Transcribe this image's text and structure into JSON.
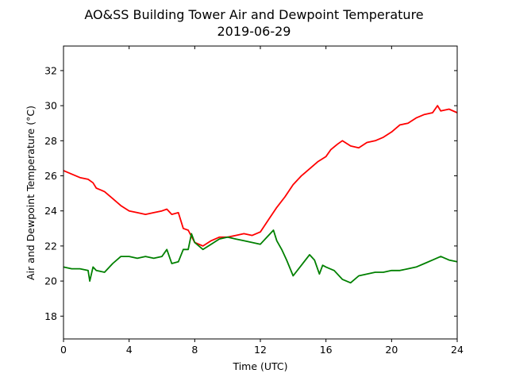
{
  "chart_data": {
    "type": "line",
    "title": "AO&SS Building Tower Air and Dewpoint Temperature",
    "subtitle": "2019-06-29",
    "xlabel": "Time (UTC)",
    "ylabel": "Air and Dewpoint Temperature (°C)",
    "xlim": [
      0,
      24
    ],
    "ylim": [
      16.7,
      33.4
    ],
    "xticks": [
      0,
      4,
      8,
      12,
      16,
      20,
      24
    ],
    "yticks": [
      18,
      20,
      22,
      24,
      26,
      28,
      30,
      32
    ],
    "grid": false,
    "legend": "none",
    "series": [
      {
        "color": "#ff0000",
        "x": [
          0,
          0.5,
          1,
          1.5,
          1.8,
          2.0,
          2.5,
          3.0,
          3.5,
          4.0,
          4.5,
          5.0,
          5.5,
          6.0,
          6.3,
          6.6,
          7.0,
          7.3,
          7.6,
          8.0,
          8.5,
          9.0,
          9.5,
          10.0,
          10.5,
          11.0,
          11.5,
          12.0,
          12.5,
          13.0,
          13.5,
          14.0,
          14.5,
          15.0,
          15.5,
          16.0,
          16.3,
          16.7,
          17.0,
          17.5,
          18.0,
          18.5,
          19.0,
          19.5,
          20.0,
          20.5,
          21.0,
          21.5,
          22.0,
          22.5,
          22.8,
          23.0,
          23.5,
          24.0
        ],
        "y": [
          26.3,
          26.1,
          25.9,
          25.8,
          25.6,
          25.3,
          25.1,
          24.7,
          24.3,
          24.0,
          23.9,
          23.8,
          23.9,
          24.0,
          24.1,
          23.8,
          23.9,
          23.0,
          22.9,
          22.2,
          22.0,
          22.3,
          22.5,
          22.5,
          22.6,
          22.7,
          22.6,
          22.8,
          23.5,
          24.2,
          24.8,
          25.5,
          26.0,
          26.4,
          26.8,
          27.1,
          27.5,
          27.8,
          28.0,
          27.7,
          27.6,
          27.9,
          28.0,
          28.2,
          28.5,
          28.9,
          29.0,
          29.3,
          29.5,
          29.6,
          30.0,
          29.7,
          29.8,
          29.6
        ]
      },
      {
        "color": "#008000",
        "x": [
          0,
          0.5,
          1.0,
          1.5,
          1.6,
          1.8,
          2.0,
          2.5,
          3.0,
          3.5,
          4.0,
          4.5,
          5.0,
          5.5,
          6.0,
          6.3,
          6.6,
          7.0,
          7.3,
          7.6,
          7.8,
          8.0,
          8.5,
          9.0,
          9.5,
          10.0,
          10.5,
          11.0,
          11.5,
          12.0,
          12.5,
          12.8,
          13.0,
          13.3,
          13.6,
          14.0,
          14.5,
          15.0,
          15.3,
          15.6,
          15.8,
          16.0,
          16.5,
          17.0,
          17.5,
          18.0,
          18.5,
          19.0,
          19.5,
          20.0,
          20.5,
          21.0,
          21.5,
          22.0,
          22.5,
          23.0,
          23.5,
          24.0
        ],
        "y": [
          20.8,
          20.7,
          20.7,
          20.6,
          20.0,
          20.8,
          20.6,
          20.5,
          21.0,
          21.4,
          21.4,
          21.3,
          21.4,
          21.3,
          21.4,
          21.8,
          21.0,
          21.1,
          21.8,
          21.8,
          22.7,
          22.2,
          21.8,
          22.1,
          22.4,
          22.5,
          22.4,
          22.3,
          22.2,
          22.1,
          22.6,
          22.9,
          22.3,
          21.8,
          21.2,
          20.3,
          20.9,
          21.5,
          21.2,
          20.4,
          20.9,
          20.8,
          20.6,
          20.1,
          19.9,
          20.3,
          20.4,
          20.5,
          20.5,
          20.6,
          20.6,
          20.7,
          20.8,
          21.0,
          21.2,
          21.4,
          21.2,
          21.1
        ]
      }
    ]
  }
}
